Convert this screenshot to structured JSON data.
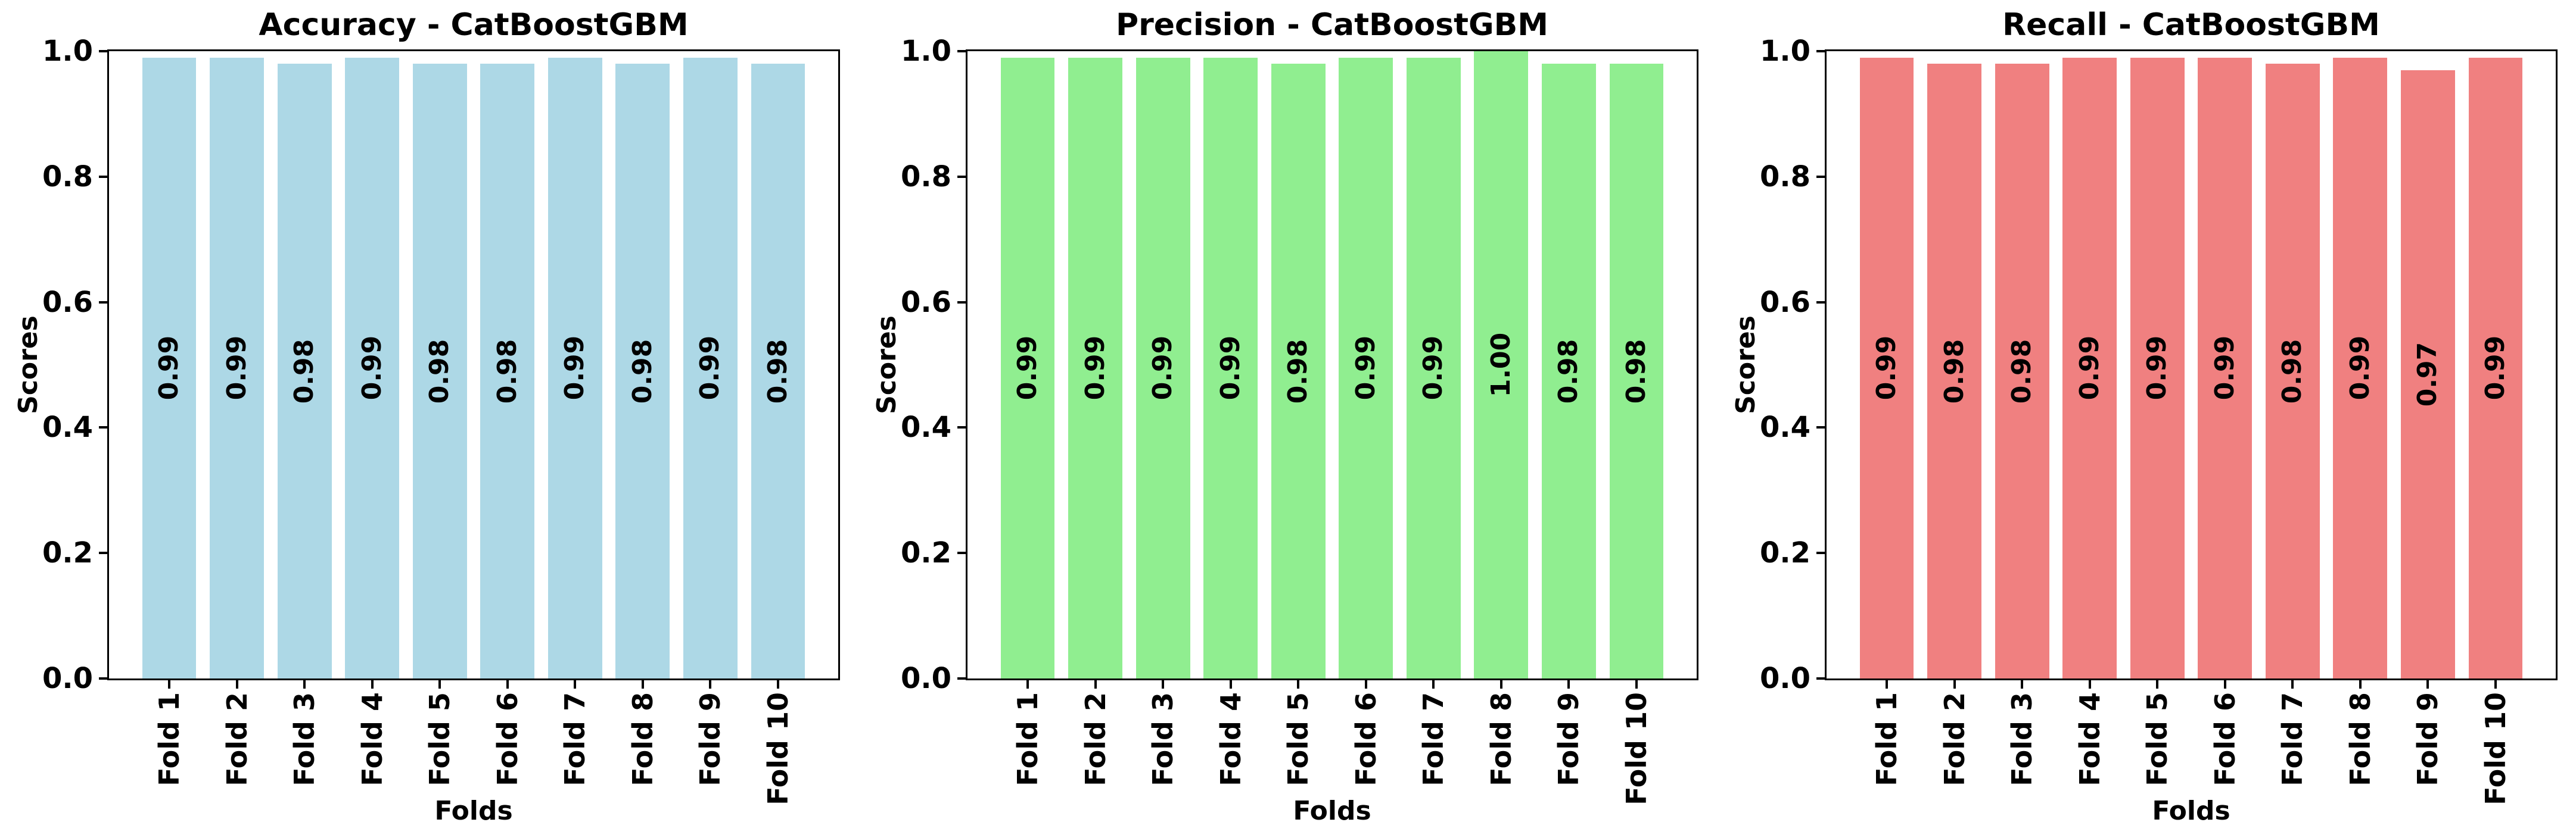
{
  "style": {
    "background": "#ffffff",
    "text_color": "#000000",
    "axis_color": "#000000"
  },
  "chart_data": [
    {
      "id": "accuracy",
      "type": "bar",
      "title": "Accuracy - CatBoostGBM",
      "xlabel": "Folds",
      "ylabel": "Scores",
      "categories": [
        "Fold 1",
        "Fold 2",
        "Fold 3",
        "Fold 4",
        "Fold 5",
        "Fold 6",
        "Fold 7",
        "Fold 8",
        "Fold 9",
        "Fold 10"
      ],
      "values": [
        0.99,
        0.99,
        0.98,
        0.99,
        0.98,
        0.98,
        0.99,
        0.98,
        0.99,
        0.98
      ],
      "bar_labels": [
        "0.99",
        "0.99",
        "0.98",
        "0.99",
        "0.98",
        "0.98",
        "0.99",
        "0.98",
        "0.99",
        "0.98"
      ],
      "bar_color": "#ADD8E6",
      "ylim": [
        0.0,
        1.0
      ],
      "yticks": [
        0.0,
        0.2,
        0.4,
        0.6,
        0.8,
        1.0
      ],
      "ytick_labels": [
        "0.0",
        "0.2",
        "0.4",
        "0.6",
        "0.8",
        "1.0"
      ],
      "grid": false,
      "legend": null
    },
    {
      "id": "precision",
      "type": "bar",
      "title": "Precision - CatBoostGBM",
      "xlabel": "Folds",
      "ylabel": "Scores",
      "categories": [
        "Fold 1",
        "Fold 2",
        "Fold 3",
        "Fold 4",
        "Fold 5",
        "Fold 6",
        "Fold 7",
        "Fold 8",
        "Fold 9",
        "Fold 10"
      ],
      "values": [
        0.99,
        0.99,
        0.99,
        0.99,
        0.98,
        0.99,
        0.99,
        1.0,
        0.98,
        0.98
      ],
      "bar_labels": [
        "0.99",
        "0.99",
        "0.99",
        "0.99",
        "0.98",
        "0.99",
        "0.99",
        "1.00",
        "0.98",
        "0.98"
      ],
      "bar_color": "#90EE90",
      "ylim": [
        0.0,
        1.0
      ],
      "yticks": [
        0.0,
        0.2,
        0.4,
        0.6,
        0.8,
        1.0
      ],
      "ytick_labels": [
        "0.0",
        "0.2",
        "0.4",
        "0.6",
        "0.8",
        "1.0"
      ],
      "grid": false,
      "legend": null
    },
    {
      "id": "recall",
      "type": "bar",
      "title": "Recall - CatBoostGBM",
      "xlabel": "Folds",
      "ylabel": "Scores",
      "categories": [
        "Fold 1",
        "Fold 2",
        "Fold 3",
        "Fold 4",
        "Fold 5",
        "Fold 6",
        "Fold 7",
        "Fold 8",
        "Fold 9",
        "Fold 10"
      ],
      "values": [
        0.99,
        0.98,
        0.98,
        0.99,
        0.99,
        0.99,
        0.98,
        0.99,
        0.97,
        0.99
      ],
      "bar_labels": [
        "0.99",
        "0.98",
        "0.98",
        "0.99",
        "0.99",
        "0.99",
        "0.98",
        "0.99",
        "0.97",
        "0.99"
      ],
      "bar_color": "#F08080",
      "ylim": [
        0.0,
        1.0
      ],
      "yticks": [
        0.0,
        0.2,
        0.4,
        0.6,
        0.8,
        1.0
      ],
      "ytick_labels": [
        "0.0",
        "0.2",
        "0.4",
        "0.6",
        "0.8",
        "1.0"
      ],
      "grid": false,
      "legend": null
    }
  ]
}
